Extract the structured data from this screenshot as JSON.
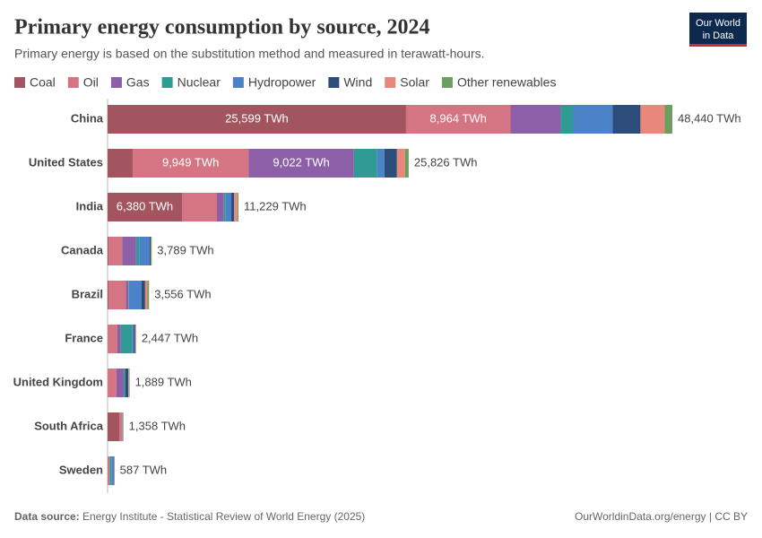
{
  "header": {
    "logo_line1": "Our World",
    "logo_line2": "in Data"
  },
  "chart_data": {
    "type": "stacked-bar-horizontal",
    "title": "Primary energy consumption by source, 2024",
    "subtitle": "Primary energy is based on the substitution method and measured in terawatt-hours.",
    "categories": [
      "China",
      "United States",
      "India",
      "Canada",
      "Brazil",
      "France",
      "United Kingdom",
      "South Africa",
      "Sweden"
    ],
    "series": [
      {
        "name": "Coal",
        "color": "#a2545f",
        "values": [
          25599,
          2150,
          6380,
          100,
          80,
          20,
          10,
          1000,
          10
        ],
        "value_labels": [
          "25,599 TWh",
          null,
          "6,380 TWh",
          null,
          null,
          null,
          null,
          null,
          null
        ]
      },
      {
        "name": "Oil",
        "color": "#d57483",
        "values": [
          8964,
          9949,
          3000,
          1150,
          1500,
          820,
          750,
          260,
          160
        ],
        "value_labels": [
          "8,964 TWh",
          "9,949 TWh",
          null,
          null,
          null,
          null,
          null,
          null,
          null
        ]
      },
      {
        "name": "Gas",
        "color": "#8c5fa8",
        "values": [
          4300,
          9022,
          600,
          1200,
          200,
          300,
          620,
          20,
          5
        ],
        "value_labels": [
          null,
          "9,022 TWh",
          null,
          null,
          null,
          null,
          null,
          null,
          null
        ]
      },
      {
        "name": "Nuclear",
        "color": "#2f9b94",
        "values": [
          1080,
          2000,
          150,
          250,
          40,
          950,
          120,
          30,
          150
        ]
      },
      {
        "name": "Hydropower",
        "color": "#4b82c8",
        "values": [
          3380,
          620,
          480,
          900,
          1100,
          150,
          15,
          5,
          190
        ]
      },
      {
        "name": "Wind",
        "color": "#2c4d7a",
        "values": [
          2380,
          1080,
          250,
          100,
          300,
          130,
          260,
          25,
          60
        ]
      },
      {
        "name": "Solar",
        "color": "#e8887a",
        "values": [
          2080,
          700,
          280,
          20,
          200,
          60,
          50,
          15,
          10
        ]
      },
      {
        "name": "Other renewables",
        "color": "#6c9f5f",
        "values": [
          657,
          305,
          89,
          69,
          136,
          17,
          64,
          3,
          2
        ]
      }
    ],
    "totals": [
      48440,
      25826,
      11229,
      3789,
      3556,
      2447,
      1889,
      1358,
      587
    ],
    "total_labels": [
      "48,440 TWh",
      "25,826 TWh",
      "11,229 TWh",
      "3,789 TWh",
      "3,556 TWh",
      "2,447 TWh",
      "1,889 TWh",
      "1,358 TWh",
      "587 TWh"
    ],
    "source_label": "Data source:",
    "source": "Energy Institute - Statistical Review of World Energy (2025)",
    "credit": "OurWorldinData.org/energy | CC BY"
  }
}
